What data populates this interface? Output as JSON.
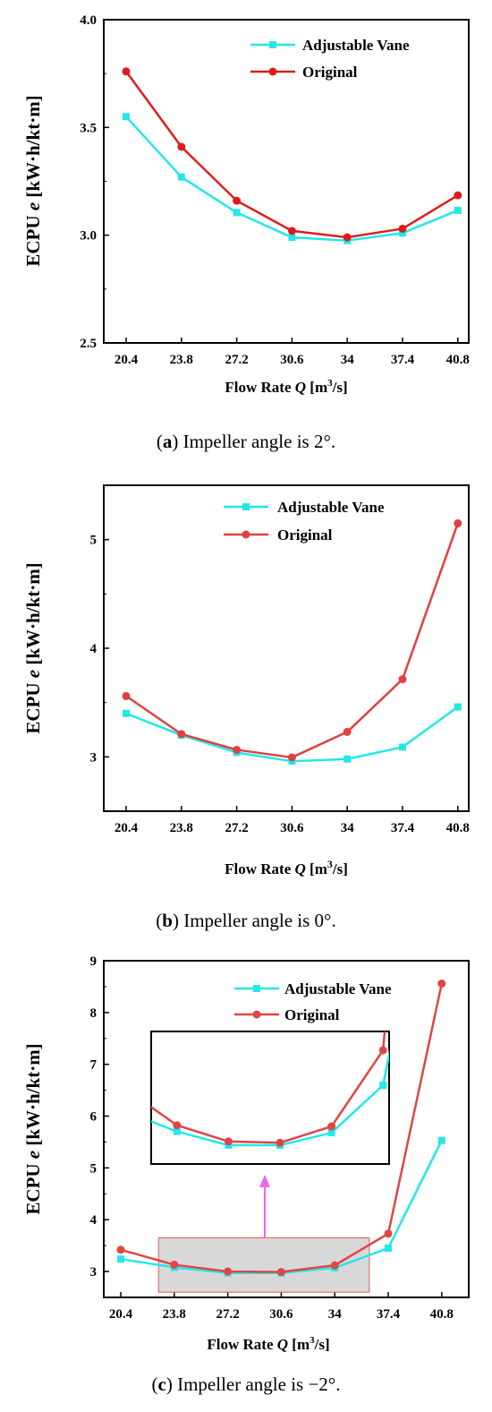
{
  "chart_data": [
    {
      "type": "line",
      "categories": [
        "20.4",
        "23.8",
        "27.2",
        "30.6",
        "34",
        "37.4",
        "40.8"
      ],
      "series": [
        {
          "name": "Adjustable Vane",
          "color": "#22e8e8",
          "marker": "square",
          "values": [
            3.55,
            3.27,
            3.105,
            2.99,
            2.975,
            3.01,
            3.115
          ]
        },
        {
          "name": "Original",
          "color": "#e01b1b",
          "marker": "circle",
          "values": [
            3.76,
            3.41,
            3.16,
            3.02,
            2.99,
            3.03,
            3.185
          ]
        }
      ],
      "ylim": [
        2.5,
        4.0
      ],
      "yticks": [
        "2.5",
        "3.0",
        "3.5",
        "4.0"
      ],
      "xlabel": {
        "pre": "Flow Rate ",
        "var": "Q",
        "post": " [m",
        "sup": "3",
        "end": "/s]"
      },
      "ylabel": {
        "pre": "ECPU ",
        "var": "e",
        "post": " [kW·h/kt·m]"
      },
      "caption": {
        "open": "(",
        "letter": "a",
        "close": ") Impeller angle is 2°."
      },
      "legend_position": "top-right"
    },
    {
      "type": "line",
      "categories": [
        "20.4",
        "23.8",
        "27.2",
        "30.6",
        "34",
        "37.4",
        "40.8"
      ],
      "series": [
        {
          "name": "Adjustable Vane",
          "color": "#22e8e8",
          "marker": "square",
          "values": [
            3.4,
            3.2,
            3.04,
            2.96,
            2.98,
            3.09,
            3.46
          ]
        },
        {
          "name": "Original",
          "color": "#e04040",
          "marker": "circle",
          "values": [
            3.56,
            3.21,
            3.065,
            2.995,
            3.23,
            3.715,
            5.15
          ]
        }
      ],
      "ylim": [
        2.5,
        5.5
      ],
      "yticks": [
        "3",
        "4",
        "5"
      ],
      "xlabel": {
        "pre": "Flow Rate ",
        "var": "Q",
        "post": " [m",
        "sup": "3",
        "end": "/s]"
      },
      "ylabel": {
        "pre": "ECPU ",
        "var": "e",
        "post": " [kW·h/kt·m]"
      },
      "caption": {
        "open": "(",
        "letter": "b",
        "close": ") Impeller angle is 0°."
      },
      "legend_position": "top-center"
    },
    {
      "type": "line",
      "categories": [
        "20.4",
        "23.8",
        "27.2",
        "30.6",
        "34",
        "37.4",
        "40.8"
      ],
      "series": [
        {
          "name": "Adjustable Vane",
          "color": "#22e8e8",
          "marker": "square",
          "values": [
            3.24,
            3.08,
            2.97,
            2.97,
            3.07,
            3.45,
            5.53
          ]
        },
        {
          "name": "Original",
          "color": "#e04545",
          "marker": "circle",
          "values": [
            3.42,
            3.13,
            3.0,
            2.99,
            3.12,
            3.73,
            8.56
          ]
        }
      ],
      "ylim": [
        2.5,
        9.0
      ],
      "yticks": [
        "3",
        "4",
        "5",
        "6",
        "7",
        "8",
        "9"
      ],
      "xlabel": {
        "pre": "Flow Rate ",
        "var": "Q",
        "post": " [m",
        "sup": "3",
        "end": "/s]"
      },
      "ylabel": {
        "pre": "ECPU ",
        "var": "e",
        "post": " [kW·h/kt·m]"
      },
      "caption": {
        "open": "(",
        "letter": "c",
        "close": ") Impeller angle is −2°."
      },
      "legend_position": "top-right",
      "inset": {
        "x_range": [
          22.8,
          36.2
        ],
        "y_range": [
          2.6,
          3.65
        ],
        "arrow_color": "#ee66ee",
        "highlight_color": "#d8d8d8",
        "highlight_border": "#e06060"
      }
    }
  ]
}
